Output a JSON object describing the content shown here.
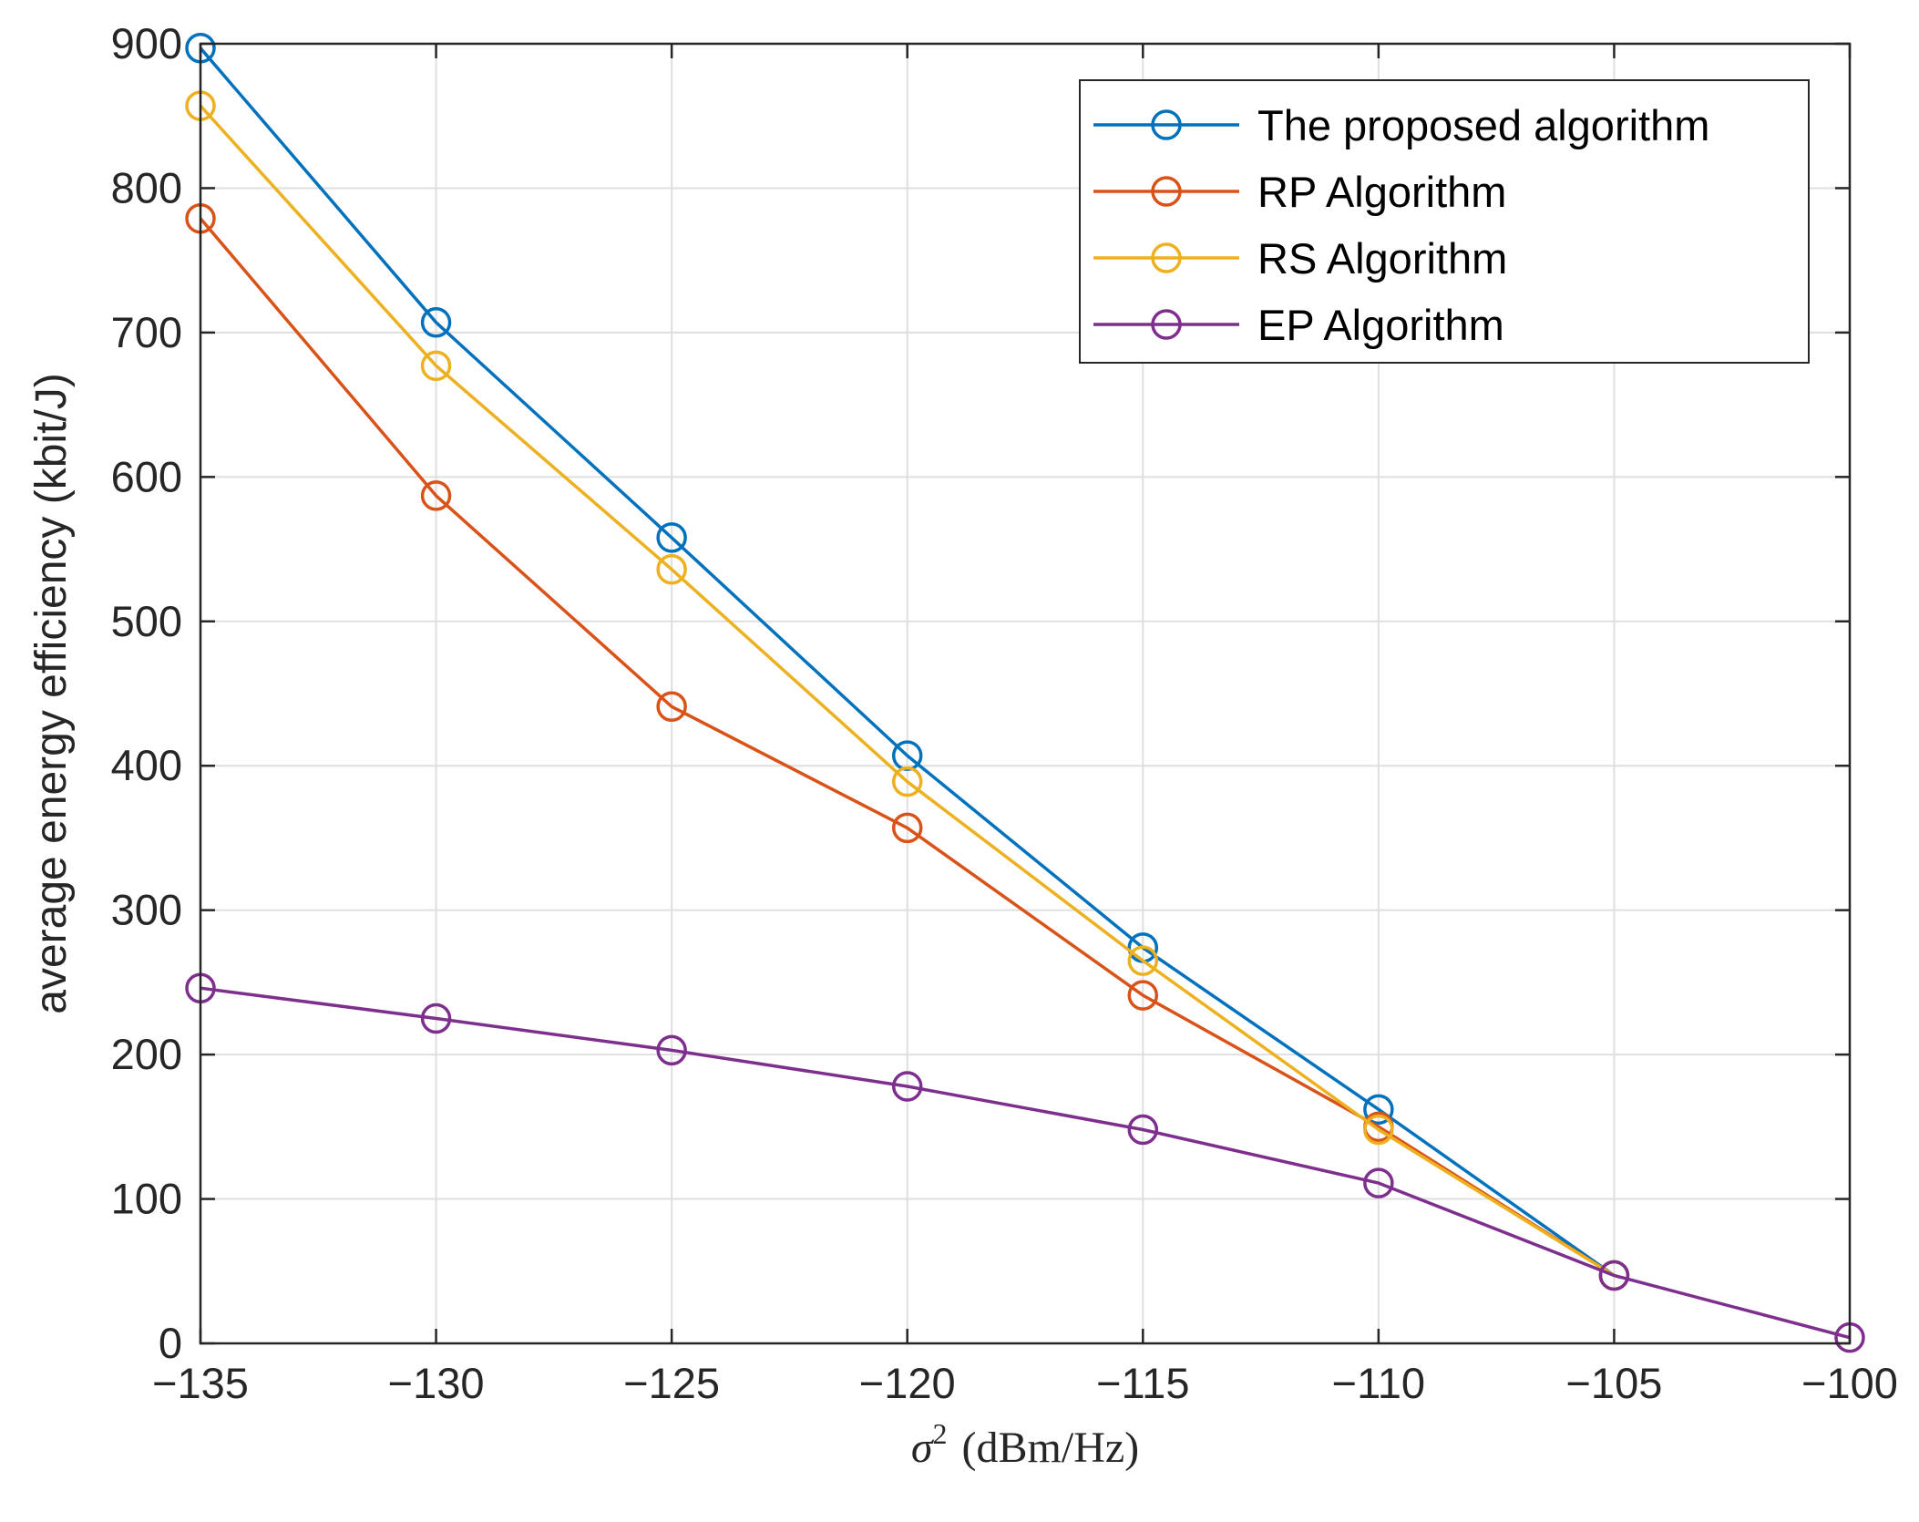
{
  "chart_data": {
    "type": "line",
    "title": "",
    "xlabel": "σ² (dBm/Hz)",
    "xlabel_parts": {
      "symbol": "σ",
      "superscript": "2",
      "unit": "(dBm/Hz)"
    },
    "ylabel": "average energy efficiency (kbit/J)",
    "xlim": [
      -135,
      -100
    ],
    "ylim": [
      0,
      900
    ],
    "xticks": [
      -135,
      -130,
      -125,
      -120,
      -115,
      -110,
      -105,
      -100
    ],
    "xtick_labels": [
      "−135",
      "−130",
      "−125",
      "−120",
      "−115",
      "−110",
      "−105",
      "−100"
    ],
    "yticks": [
      0,
      100,
      200,
      300,
      400,
      500,
      600,
      700,
      800,
      900
    ],
    "ytick_labels": [
      "0",
      "100",
      "200",
      "300",
      "400",
      "500",
      "600",
      "700",
      "800",
      "900"
    ],
    "grid": true,
    "legend_position": "top-right",
    "marker": "circle",
    "series": [
      {
        "name": "The proposed algorithm",
        "color": "#0072BD",
        "x": [
          -135,
          -130,
          -125,
          -120,
          -115,
          -110,
          -105
        ],
        "values": [
          897,
          707,
          558,
          407,
          274,
          162,
          47
        ]
      },
      {
        "name": "RP Algorithm",
        "color": "#D95319",
        "x": [
          -135,
          -130,
          -125,
          -120,
          -115,
          -110,
          -105
        ],
        "values": [
          779,
          587,
          441,
          357,
          241,
          150,
          47
        ]
      },
      {
        "name": "RS Algorithm",
        "color": "#EDB120",
        "x": [
          -135,
          -130,
          -125,
          -120,
          -115,
          -110,
          -105
        ],
        "values": [
          857,
          677,
          536,
          389,
          265,
          148,
          47
        ]
      },
      {
        "name": "EP Algorithm",
        "color": "#7E2F8E",
        "x": [
          -135,
          -130,
          -125,
          -120,
          -115,
          -110,
          -105,
          -100
        ],
        "values": [
          246,
          225,
          203,
          178,
          148,
          111,
          47,
          4
        ]
      }
    ]
  }
}
